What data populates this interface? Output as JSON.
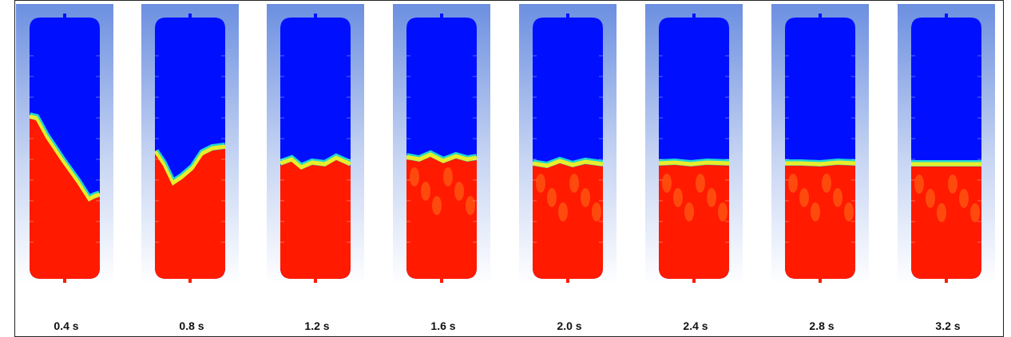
{
  "panels": [
    {
      "label": "0.4 s"
    },
    {
      "label": "0.8 s"
    },
    {
      "label": "1.2 s"
    },
    {
      "label": "1.6 s"
    },
    {
      "label": "2.0 s"
    },
    {
      "label": "2.4 s"
    },
    {
      "label": "2.8 s"
    },
    {
      "label": "3.2 s"
    }
  ]
}
